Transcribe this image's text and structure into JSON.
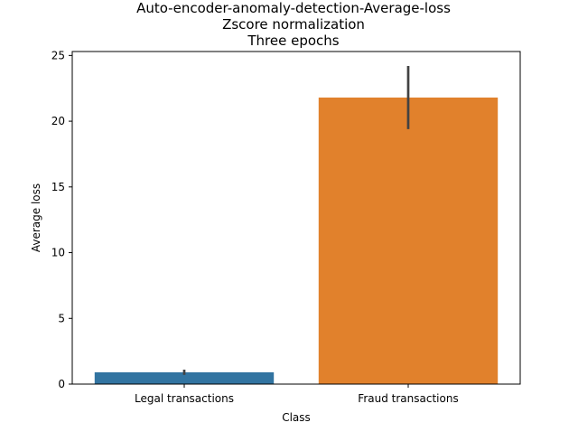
{
  "chart_data": {
    "type": "bar",
    "title_lines": [
      "Auto-encoder-anomaly-detection-Average-loss",
      "Zscore normalization",
      "Three epochs"
    ],
    "xlabel": "Class",
    "ylabel": "Average loss",
    "categories": [
      "Legal transactions",
      "Fraud transactions"
    ],
    "values": [
      0.9,
      21.8
    ],
    "error_low": [
      0.7,
      19.4
    ],
    "error_high": [
      1.1,
      24.2
    ],
    "colors": [
      "#3274a1",
      "#e1812c"
    ],
    "error_color": "#424242",
    "ylim": [
      0,
      25.3
    ],
    "yticks": [
      0,
      5,
      10,
      15,
      20,
      25
    ],
    "grid": false
  }
}
